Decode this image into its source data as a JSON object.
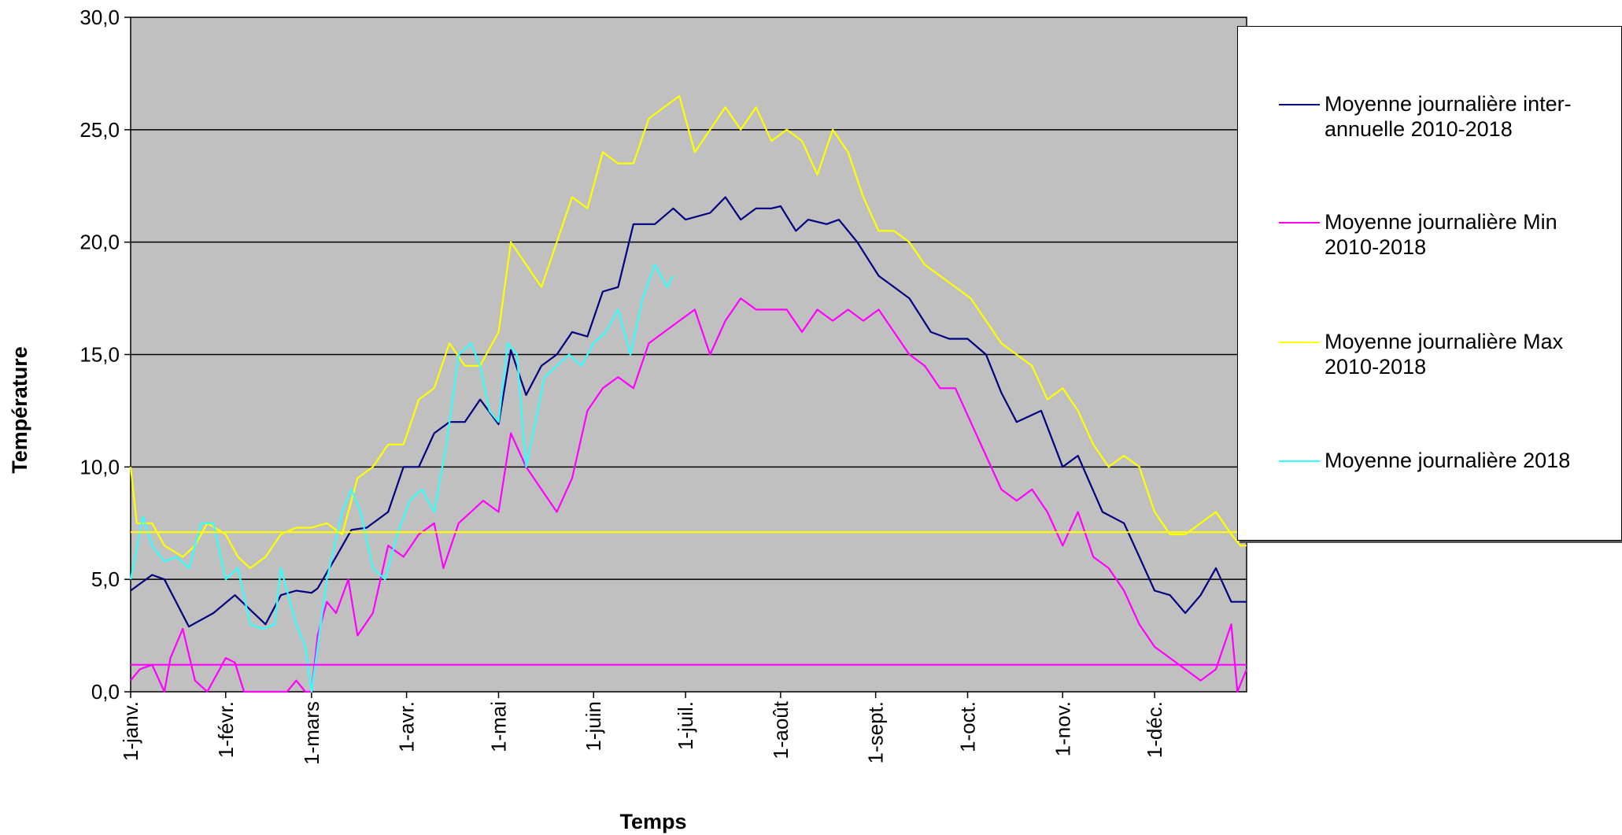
{
  "chart_data": {
    "type": "line",
    "xlabel": "Temps",
    "ylabel": "Température",
    "ylim": [
      0,
      30
    ],
    "y_ticks": [
      "0,0",
      "5,0",
      "10,0",
      "15,0",
      "20,0",
      "25,0",
      "30,0"
    ],
    "x_tick_labels": [
      "1-janv.",
      "1-févr.",
      "1-mars",
      "1-avr.",
      "1-mai",
      "1-juin",
      "1-juil.",
      "1-août",
      "1-sept.",
      "1-oct.",
      "1-nov.",
      "1-déc."
    ],
    "x_tick_days": [
      1,
      32,
      60,
      91,
      121,
      152,
      182,
      213,
      244,
      274,
      305,
      335
    ],
    "xlim_days": [
      1,
      365
    ],
    "grid": "horizontal",
    "legend_position": "right",
    "plot_background": "#c0c0c0",
    "series": [
      {
        "name": "Moyenne journalière  inter-annuelle 2010-2018",
        "color": "#000080",
        "days": [
          1,
          8,
          12,
          20,
          28,
          35,
          45,
          50,
          55,
          60,
          62,
          68,
          73,
          78,
          85,
          90,
          95,
          100,
          105,
          110,
          115,
          121,
          125,
          130,
          135,
          140,
          145,
          150,
          155,
          160,
          165,
          172,
          178,
          182,
          190,
          195,
          200,
          205,
          210,
          213,
          218,
          222,
          228,
          232,
          238,
          245,
          250,
          255,
          262,
          268,
          274,
          280,
          285,
          290,
          298,
          305,
          310,
          318,
          325,
          330,
          335,
          340,
          345,
          350,
          355,
          360,
          365
        ],
        "values": [
          4.5,
          5.2,
          5.0,
          2.9,
          3.5,
          4.3,
          3.0,
          4.3,
          4.5,
          4.4,
          4.6,
          6.0,
          7.2,
          7.3,
          8.0,
          10.0,
          10.0,
          11.5,
          12.0,
          12.0,
          13.0,
          11.9,
          15.2,
          13.2,
          14.5,
          15.0,
          16.0,
          15.8,
          17.8,
          18.0,
          20.8,
          20.8,
          21.5,
          21.0,
          21.3,
          22.0,
          21.0,
          21.5,
          21.5,
          21.6,
          20.5,
          21.0,
          20.8,
          21.0,
          20.0,
          18.5,
          18.0,
          17.5,
          16.0,
          15.7,
          15.7,
          15.0,
          13.3,
          12.0,
          12.5,
          10.0,
          10.5,
          8.0,
          7.5,
          6.0,
          4.5,
          4.3,
          3.5,
          4.3,
          5.5,
          4.0,
          4.0
        ]
      },
      {
        "name": "Moyenne journalière Min 2010-2018",
        "color": "#ff00ff",
        "days": [
          1,
          4,
          8,
          12,
          14,
          18,
          22,
          26,
          32,
          35,
          38,
          45,
          52,
          55,
          58,
          60,
          62,
          65,
          68,
          72,
          75,
          80,
          85,
          90,
          95,
          100,
          103,
          108,
          112,
          116,
          121,
          125,
          130,
          135,
          140,
          145,
          150,
          155,
          160,
          165,
          170,
          175,
          180,
          185,
          190,
          195,
          200,
          205,
          210,
          215,
          220,
          225,
          230,
          235,
          240,
          245,
          250,
          255,
          260,
          265,
          270,
          275,
          280,
          285,
          290,
          295,
          300,
          305,
          310,
          315,
          320,
          325,
          330,
          335,
          340,
          345,
          350,
          355,
          360,
          362,
          365
        ],
        "values": [
          0.5,
          1.0,
          1.2,
          0.0,
          1.5,
          2.8,
          0.5,
          0.0,
          1.5,
          1.3,
          0.0,
          0.0,
          0.0,
          0.5,
          0.0,
          0.0,
          2.5,
          4.0,
          3.5,
          5.0,
          2.5,
          3.5,
          6.5,
          6.0,
          7.0,
          7.5,
          5.5,
          7.5,
          8.0,
          8.5,
          8.0,
          11.5,
          10.0,
          9.0,
          8.0,
          9.5,
          12.5,
          13.5,
          14.0,
          13.5,
          15.5,
          16.0,
          16.5,
          17.0,
          15.0,
          16.5,
          17.5,
          17.0,
          17.0,
          17.0,
          16.0,
          17.0,
          16.5,
          17.0,
          16.5,
          17.0,
          16.0,
          15.0,
          14.5,
          13.5,
          13.5,
          12.0,
          10.5,
          9.0,
          8.5,
          9.0,
          8.0,
          6.5,
          8.0,
          6.0,
          5.5,
          4.5,
          3.0,
          2.0,
          1.5,
          1.0,
          0.5,
          1.0,
          3.0,
          0.0,
          1.0
        ]
      },
      {
        "name": "Moyenne journalière Max 2010-2018",
        "color": "#ffff00",
        "days": [
          1,
          3,
          8,
          12,
          18,
          22,
          26,
          32,
          36,
          40,
          45,
          50,
          55,
          60,
          65,
          70,
          75,
          80,
          85,
          90,
          95,
          100,
          105,
          110,
          115,
          121,
          125,
          130,
          135,
          140,
          145,
          150,
          155,
          160,
          165,
          170,
          175,
          180,
          185,
          190,
          195,
          200,
          205,
          210,
          215,
          220,
          225,
          230,
          235,
          240,
          245,
          250,
          255,
          260,
          265,
          270,
          275,
          280,
          285,
          290,
          295,
          300,
          305,
          310,
          315,
          320,
          325,
          330,
          335,
          340,
          345,
          350,
          355,
          360,
          363,
          365
        ],
        "values": [
          10.0,
          7.5,
          7.5,
          6.5,
          6.0,
          6.5,
          7.5,
          7.0,
          6.0,
          5.5,
          6.0,
          7.0,
          7.3,
          7.3,
          7.5,
          7.0,
          9.5,
          10.0,
          11.0,
          11.0,
          13.0,
          13.5,
          15.5,
          14.5,
          14.5,
          16.0,
          20.0,
          19.0,
          18.0,
          20.0,
          22.0,
          21.5,
          24.0,
          23.5,
          23.5,
          25.5,
          26.0,
          26.5,
          24.0,
          25.0,
          26.0,
          25.0,
          26.0,
          24.5,
          25.0,
          24.5,
          23.0,
          25.0,
          24.0,
          22.0,
          20.5,
          20.5,
          20.0,
          19.0,
          18.5,
          18.0,
          17.5,
          16.5,
          15.5,
          15.0,
          14.5,
          13.0,
          13.5,
          12.5,
          11.0,
          10.0,
          10.5,
          10.0,
          8.0,
          7.0,
          7.0,
          7.5,
          8.0,
          7.0,
          6.5,
          6.5
        ]
      },
      {
        "name": "Moyenne journalière 2018",
        "color": "#33ffff",
        "days": [
          1,
          5,
          8,
          12,
          16,
          20,
          24,
          28,
          32,
          36,
          40,
          44,
          48,
          50,
          55,
          58,
          60,
          62,
          65,
          70,
          73,
          76,
          80,
          84,
          88,
          92,
          96,
          100,
          104,
          108,
          112,
          115,
          118,
          121,
          124,
          127,
          130,
          133,
          136,
          140,
          144,
          148,
          152,
          156,
          160,
          164,
          168,
          172,
          176,
          178
        ],
        "values": [
          5.0,
          7.8,
          6.5,
          5.8,
          6.0,
          5.5,
          7.5,
          7.5,
          5.0,
          5.5,
          3.0,
          2.8,
          3.0,
          5.5,
          3.0,
          2.0,
          0.0,
          2.0,
          5.0,
          8.0,
          9.0,
          8.0,
          5.5,
          5.0,
          7.0,
          8.5,
          9.0,
          8.0,
          11.0,
          15.0,
          15.5,
          14.5,
          12.5,
          12.0,
          15.5,
          15.0,
          10.0,
          12.0,
          14.0,
          14.5,
          15.0,
          14.5,
          15.5,
          16.0,
          17.0,
          15.0,
          17.5,
          19.0,
          18.0,
          18.5
        ]
      },
      {
        "name": "",
        "color": "#ffff00",
        "days": [
          1,
          365
        ],
        "values": [
          7.1,
          7.1
        ]
      },
      {
        "name": "",
        "color": "#ff00ff",
        "days": [
          1,
          365
        ],
        "values": [
          1.2,
          1.2
        ]
      }
    ]
  }
}
